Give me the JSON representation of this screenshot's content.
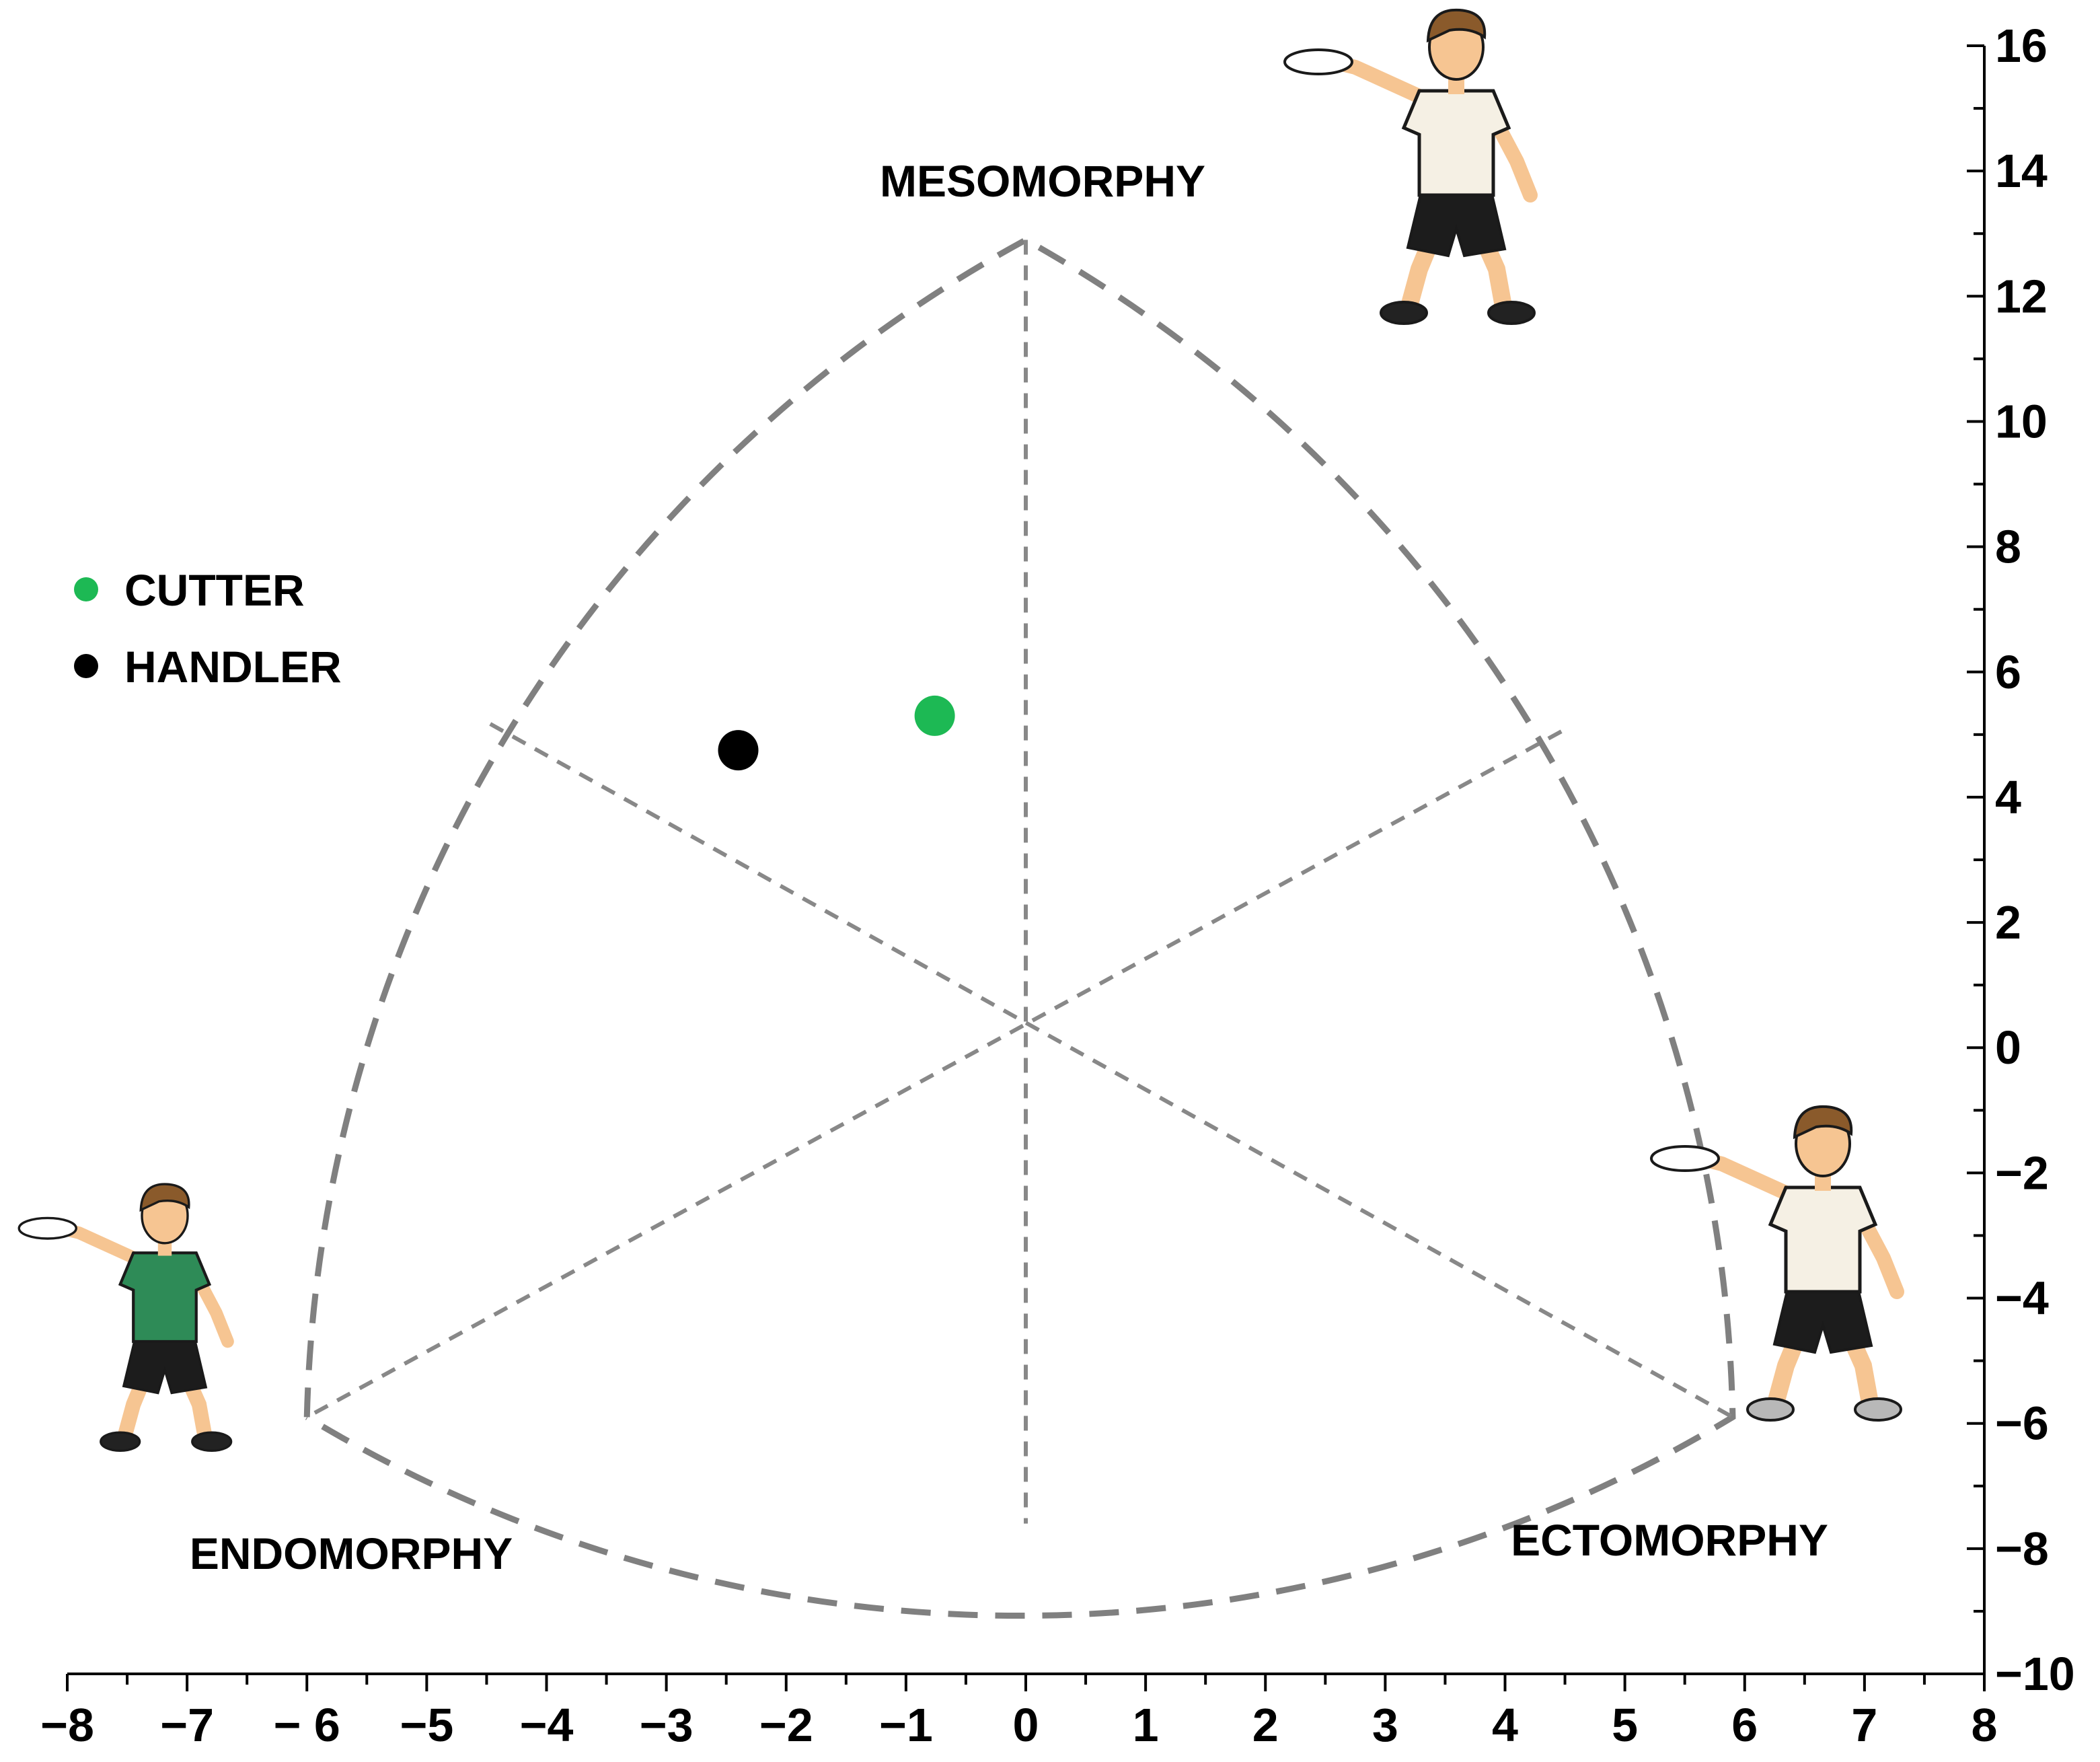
{
  "chart_data": {
    "type": "scatter",
    "subtype": "somatochart",
    "title": "",
    "xlabel": "",
    "ylabel": "",
    "xlim": [
      -8,
      8
    ],
    "ylim": [
      -10,
      16
    ],
    "x_ticks": [
      -8,
      -7,
      -6,
      -5,
      -4,
      -3,
      -2,
      -1,
      0,
      1,
      2,
      3,
      4,
      5,
      6,
      7,
      8
    ],
    "x_tick_labels": [
      "−8",
      "−7",
      "− 6",
      "−5",
      "−4",
      "−3",
      "−2",
      "−1",
      "0",
      "1",
      "2",
      "3",
      "4",
      "5",
      "6",
      "7",
      "8"
    ],
    "y_ticks": [
      -10,
      -8,
      -6,
      -4,
      -2,
      0,
      2,
      4,
      6,
      8,
      10,
      12,
      14,
      16
    ],
    "y_tick_labels": [
      "−10",
      "−8",
      "−6",
      "−4",
      "−2",
      "0",
      "2",
      "4",
      "6",
      "8",
      "10",
      "12",
      "14",
      "16"
    ],
    "y_axis_side": "right",
    "grid": false,
    "zones": {
      "mesomorphy": {
        "label": "MESOMORPHY",
        "vertex": [
          0,
          12.9
        ]
      },
      "endomorphy": {
        "label": "ENDOMORPHY",
        "vertex": [
          -6,
          -5.9
        ]
      },
      "ectomorphy": {
        "label": "ECTOMORPHY",
        "vertex": [
          5.9,
          -5.9
        ]
      }
    },
    "center": [
      0,
      0.4
    ],
    "series": [
      {
        "name": "CUTTER",
        "color": "#1db954",
        "points": [
          {
            "x": -0.76,
            "y": 5.3
          }
        ]
      },
      {
        "name": "HANDLER",
        "color": "#000000",
        "points": [
          {
            "x": -2.4,
            "y": 4.75
          }
        ]
      }
    ],
    "legend_position": "left-middle",
    "outline_color": "#808080",
    "illustrations": [
      "endomorph-player-figure",
      "mesomorph-player-figure",
      "ectomorph-player-figure"
    ]
  }
}
